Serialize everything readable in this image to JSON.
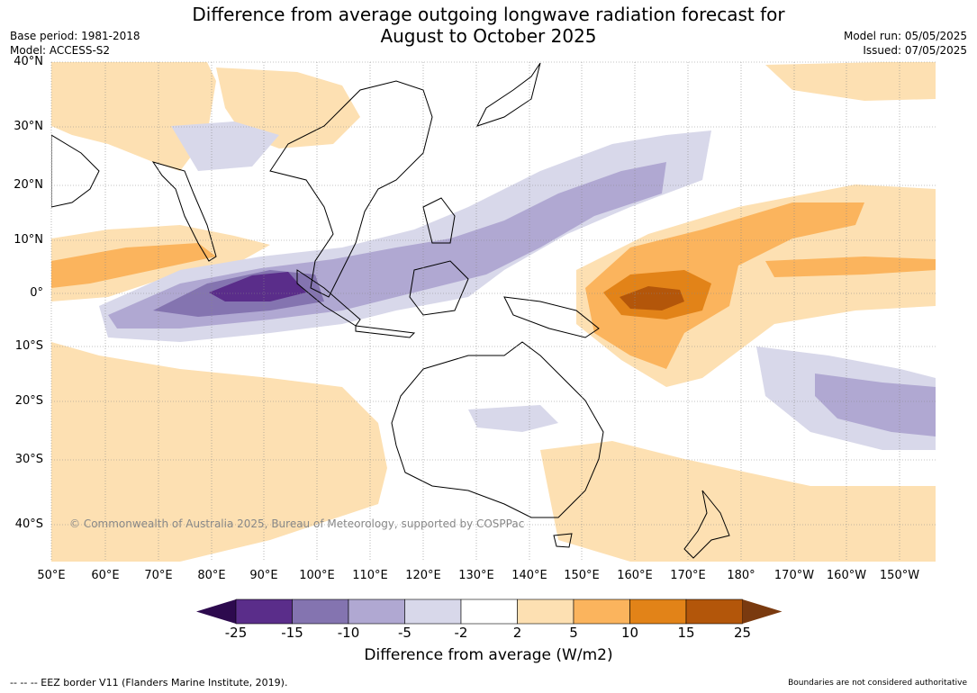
{
  "title_line1": "Difference from average outgoing longwave radiation forecast for",
  "title_line2": "August to October 2025",
  "base_period": "Base period: 1981-2018",
  "model": "Model: ACCESS-S2",
  "model_run": "Model run: 05/05/2025",
  "issued": "Issued: 07/05/2025",
  "lat_labels": [
    "40°N",
    "30°N",
    "20°N",
    "10°N",
    "0°",
    "10°S",
    "20°S",
    "30°S",
    "40°S"
  ],
  "lon_labels": [
    "50°E",
    "60°E",
    "70°E",
    "80°E",
    "90°E",
    "100°E",
    "110°E",
    "120°E",
    "130°E",
    "140°E",
    "150°E",
    "160°E",
    "170°E",
    "180°",
    "170°W",
    "160°W",
    "150°W"
  ],
  "copyright": "© Commonwealth of Australia 2025, Bureau of Meteorology, supported by COSPPac",
  "colorbar": {
    "labels": [
      "-25",
      "-15",
      "-10",
      "-5",
      "-2",
      "2",
      "5",
      "10",
      "15",
      "25"
    ],
    "colors": [
      "#2d0a4e",
      "#5a2d8a",
      "#8474b0",
      "#b0a8d2",
      "#d8d8ea",
      "#ffffff",
      "#fde0b2",
      "#fbb45d",
      "#e28318",
      "#b3560a",
      "#7a3a0f"
    ],
    "title": "Difference from average (W/m2)"
  },
  "footer_left": "--  --  -- EEZ border V11 (Flanders Marine Institute, 2019).",
  "footer_right": "Boundaries are not considered authoritative"
}
